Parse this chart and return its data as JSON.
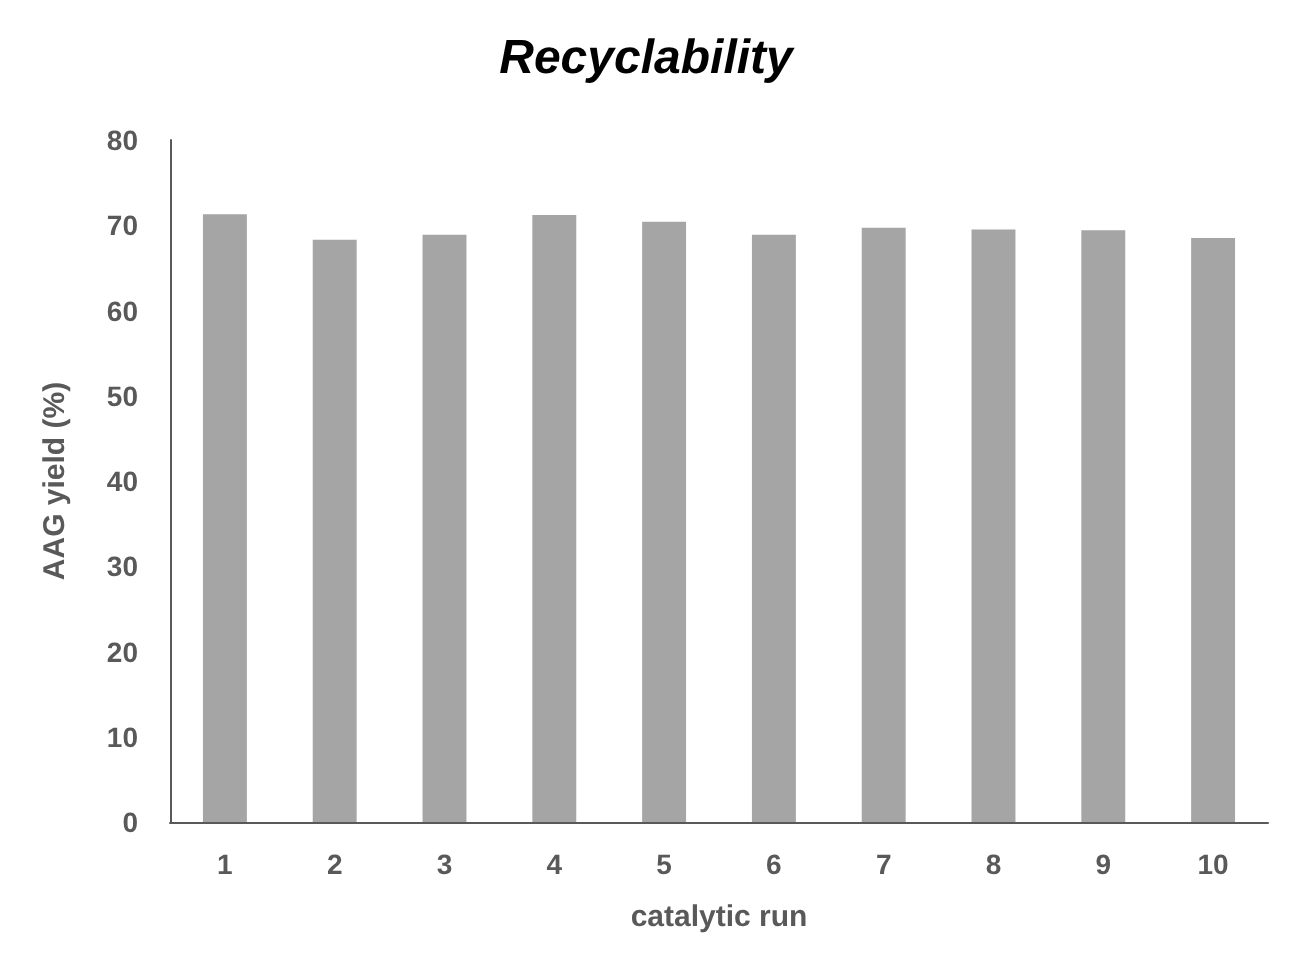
{
  "chart_data": {
    "type": "bar",
    "title": "Recyclability",
    "xlabel": "catalytic run",
    "ylabel": "AAG yield (%)",
    "categories": [
      "1",
      "2",
      "3",
      "4",
      "5",
      "6",
      "7",
      "8",
      "9",
      "10"
    ],
    "values": [
      71.3,
      68.3,
      68.9,
      71.2,
      70.4,
      68.9,
      69.7,
      69.5,
      69.4,
      68.5
    ],
    "color": "#a5a5a5",
    "ylim": [
      0,
      80
    ],
    "yticks": [
      0,
      10,
      20,
      30,
      40,
      50,
      60,
      70,
      80
    ],
    "grid": false
  }
}
